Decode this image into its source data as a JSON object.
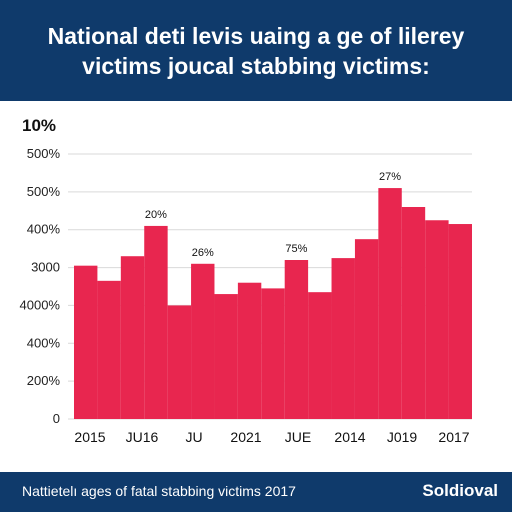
{
  "header": {
    "title_line1": "National deti levis uaing a ge of lilerey",
    "title_line2": "victims joucal stabbing victims:"
  },
  "top_note": "10%",
  "footer": {
    "caption": "Nattietelı ages of fatal stabbing victims 2017",
    "brand": "Soldioval"
  },
  "colors": {
    "header_bg": "#0f3a6b",
    "bar": "#e8264f",
    "grid": "#d9d9d9"
  },
  "chart_data": {
    "type": "bar",
    "title": "National deti levis uaing a ge of lilerey victims joucal stabbing victims:",
    "y_tick_labels": [
      "0",
      "200%",
      "400%",
      "4000%",
      "3000",
      "400%",
      "500%",
      "500%"
    ],
    "y_tick_values": [
      0,
      1,
      2,
      3,
      4,
      5,
      6,
      7
    ],
    "ylim": [
      0,
      7
    ],
    "grid": true,
    "x_tick_labels": [
      "2015",
      "JU16",
      "JU",
      "2021",
      "JUE",
      "2014",
      "J019",
      "2017"
    ],
    "values": [
      4.05,
      3.65,
      4.3,
      5.1,
      3.0,
      4.1,
      3.3,
      3.6,
      3.45,
      4.2,
      3.35,
      4.25,
      4.75,
      6.1,
      5.6,
      5.25,
      5.15
    ],
    "data_labels": [
      {
        "bar": 3,
        "text": "20%"
      },
      {
        "bar": 5,
        "text": "26%"
      },
      {
        "bar": 9,
        "text": "75%"
      },
      {
        "bar": 13,
        "text": "27%"
      }
    ]
  }
}
